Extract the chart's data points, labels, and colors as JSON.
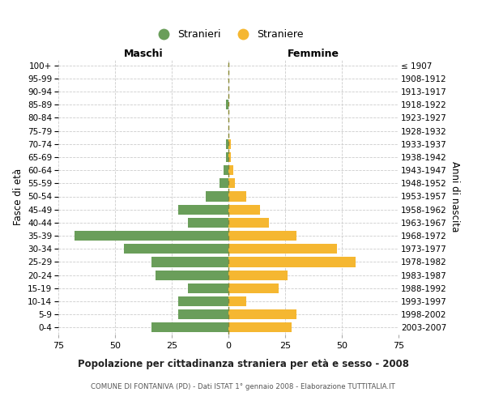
{
  "age_groups": [
    "100+",
    "95-99",
    "90-94",
    "85-89",
    "80-84",
    "75-79",
    "70-74",
    "65-69",
    "60-64",
    "55-59",
    "50-54",
    "45-49",
    "40-44",
    "35-39",
    "30-34",
    "25-29",
    "20-24",
    "15-19",
    "10-14",
    "5-9",
    "0-4"
  ],
  "birth_years": [
    "≤ 1907",
    "1908-1912",
    "1913-1917",
    "1918-1922",
    "1923-1927",
    "1928-1932",
    "1933-1937",
    "1938-1942",
    "1943-1947",
    "1948-1952",
    "1953-1957",
    "1958-1962",
    "1963-1967",
    "1968-1972",
    "1973-1977",
    "1978-1982",
    "1983-1987",
    "1988-1992",
    "1993-1997",
    "1998-2002",
    "2003-2007"
  ],
  "males": [
    0,
    0,
    0,
    1,
    0,
    0,
    1,
    1,
    2,
    4,
    10,
    22,
    18,
    68,
    46,
    34,
    32,
    18,
    22,
    22,
    34
  ],
  "females": [
    0,
    0,
    0,
    0,
    0,
    0,
    1,
    1,
    2,
    3,
    8,
    14,
    18,
    30,
    48,
    56,
    26,
    22,
    8,
    30,
    28
  ],
  "male_color": "#6a9e5a",
  "female_color": "#f5b731",
  "center_line_color": "#888833",
  "xlim": 75,
  "title": "Popolazione per cittadinanza straniera per età e sesso - 2008",
  "subtitle": "COMUNE DI FONTANIVA (PD) - Dati ISTAT 1° gennaio 2008 - Elaborazione TUTTITALIA.IT",
  "ylabel_left": "Fasce di età",
  "ylabel_right": "Anni di nascita",
  "label_maschi": "Maschi",
  "label_femmine": "Femmine",
  "legend_stranieri": "Stranieri",
  "legend_straniere": "Straniere",
  "background_color": "#ffffff",
  "grid_color": "#cccccc"
}
